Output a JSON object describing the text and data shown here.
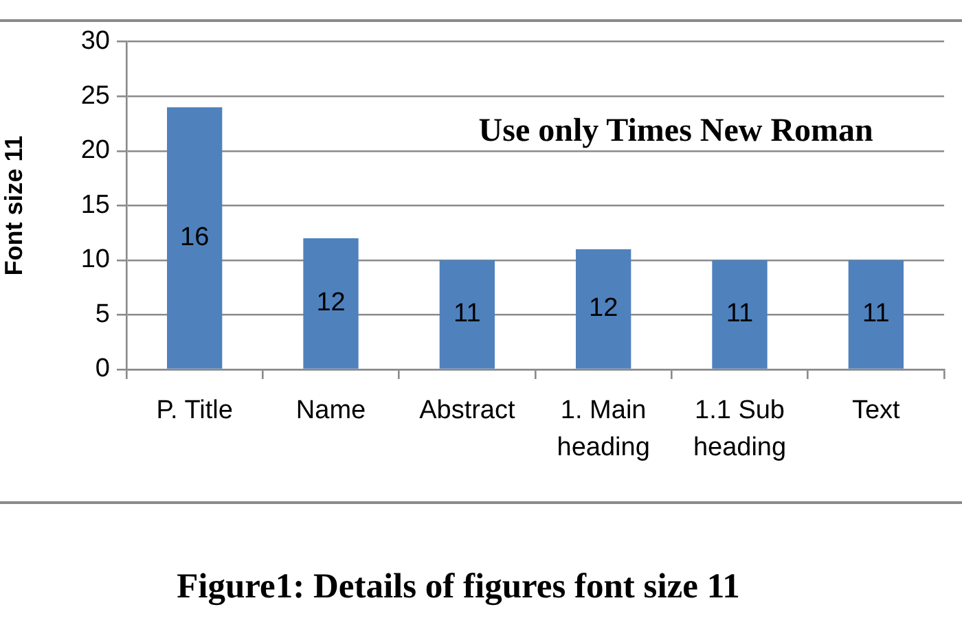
{
  "chart_data": {
    "type": "bar",
    "categories": [
      "P. Title",
      "Name",
      "Abstract",
      "1. Main heading",
      "1.1 Sub heading",
      "Text"
    ],
    "values": [
      24,
      12,
      10,
      11,
      10,
      10
    ],
    "color": "#4f81bd",
    "ylabel": "Font size 11",
    "ylim": [
      0,
      30
    ],
    "yticks": [
      0,
      5,
      10,
      15,
      20,
      25,
      30
    ],
    "grid": "y",
    "annotations": [
      "Use only Times New Roman",
      "16",
      "12",
      "11",
      "12",
      "11",
      "11",
      "Figure1: Details of figures font size 11"
    ]
  }
}
